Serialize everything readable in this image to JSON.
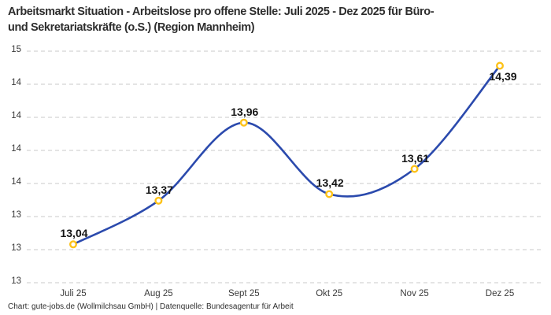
{
  "title": "Arbeitsmarkt Situation - Arbeitslose pro offene Stelle: Juli 2025 - Dez 2025 für Büro-\nund Sekretariatskräfte (o.S.) (Region Mannheim)",
  "footer": "Chart: gute-jobs.de (Wollmilchsau GmbH) | Datenquelle: Bundesagentur für Arbeit",
  "chart_data": {
    "type": "line",
    "title": "Arbeitsmarkt Situation - Arbeitslose pro offene Stelle: Juli 2025 - Dez 2025 für Büro- und Sekretariatskräfte (o.S.) (Region Mannheim)",
    "categories": [
      "Juli 25",
      "Aug 25",
      "Sept 25",
      "Okt 25",
      "Nov 25",
      "Dez 25"
    ],
    "values": [
      13.04,
      13.37,
      13.96,
      13.42,
      13.61,
      14.39
    ],
    "value_labels": [
      "13,04",
      "13,37",
      "13,96",
      "13,42",
      "13,61",
      "14,39"
    ],
    "xlabel": "",
    "ylabel": "",
    "ylim": [
      12.75,
      14.5
    ],
    "y_axis": {
      "top_value": 14.5,
      "step_value": 0.25,
      "tick_display_labels": [
        "15",
        "14",
        "14",
        "14",
        "14",
        "13",
        "13",
        "13"
      ]
    },
    "grid": "horizontal-dashed",
    "legend": "none",
    "line_color": "#2b4aad",
    "marker_fill": "#ffffff",
    "marker_ring_color": "#fdc218",
    "grid_color": "#c9c9c9",
    "last_label_position": "below"
  }
}
